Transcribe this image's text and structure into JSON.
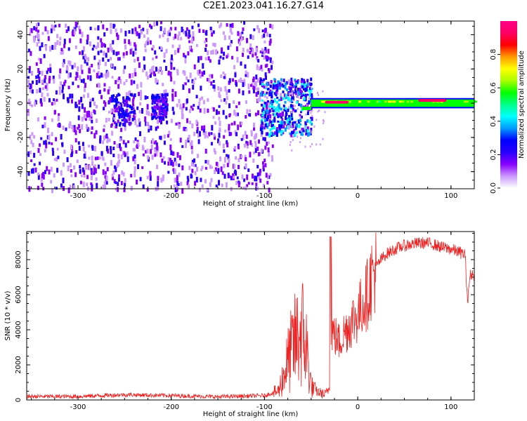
{
  "title": "C2E1.2023.041.16.27.G14",
  "chart_data": [
    {
      "type": "heatmap",
      "xlabel": "Height of straight line (km)",
      "ylabel": "Frequency (Hz)",
      "xlim": [
        -355,
        125
      ],
      "ylim": [
        -50,
        48
      ],
      "xticks": [
        -300,
        -200,
        -100,
        0,
        100
      ],
      "yticks": [
        -40,
        -20,
        0,
        20,
        40
      ],
      "grid": false,
      "colorbar": {
        "label": "Normalized spectral amplitude",
        "range": [
          0,
          1
        ],
        "ticks": [
          "0.0",
          "0.2",
          "0.4",
          "0.6",
          "0.8"
        ],
        "colors": [
          "#ffffff",
          "#cc99ff",
          "#8800ff",
          "#2a00ff",
          "#0000ff",
          "#0099ff",
          "#00ffff",
          "#00ff88",
          "#00ff00",
          "#aaff00",
          "#ffff00",
          "#ff9900",
          "#ff0000",
          "#ff0066",
          "#ff0088"
        ]
      },
      "regions": [
        {
          "name": "broadband noise",
          "x": [
            -355,
            -100
          ],
          "y": [
            -50,
            48
          ],
          "amplitude": 0.15
        },
        {
          "name": "burst",
          "x": [
            -265,
            -240
          ],
          "y": [
            -12,
            6
          ],
          "amplitude": 0.22
        },
        {
          "name": "burst",
          "x": [
            -222,
            -205
          ],
          "y": [
            -8,
            6
          ],
          "amplitude": 0.2
        },
        {
          "name": "transition",
          "x": [
            -105,
            -50
          ],
          "y": [
            -18,
            15
          ],
          "amplitude": 0.3
        },
        {
          "name": "carrier line",
          "x": [
            -50,
            125
          ],
          "y": [
            -3,
            3
          ],
          "amplitude": 0.6
        },
        {
          "name": "peak",
          "x": [
            -35,
            -10
          ],
          "y": [
            -1,
            1
          ],
          "amplitude": 0.95
        },
        {
          "name": "peak",
          "x": [
            65,
            95
          ],
          "y": [
            0,
            2
          ],
          "amplitude": 0.95
        }
      ]
    },
    {
      "type": "line",
      "xlabel": "Height of straight line (km)",
      "ylabel": "SNR (10 * v/v)",
      "xlim": [
        -355,
        125
      ],
      "ylim": [
        0,
        9600
      ],
      "xticks": [
        -300,
        -200,
        -100,
        0,
        100
      ],
      "yticks": [
        0,
        2000,
        4000,
        6000,
        8000
      ],
      "color": "#ee2222",
      "grid": false,
      "series": [
        {
          "x": [
            -355,
            -300,
            -250,
            -200,
            -150,
            -100,
            -85,
            -75,
            -70,
            -65,
            -60,
            -55,
            -50,
            -45,
            -40,
            -35,
            -30,
            -28,
            -25,
            -20,
            -15,
            -10,
            -5,
            0,
            5,
            10,
            15,
            20,
            25,
            30,
            40,
            50,
            60,
            70,
            80,
            90,
            100,
            110,
            115,
            118,
            120,
            122,
            125
          ],
          "y": [
            200,
            200,
            300,
            250,
            180,
            250,
            500,
            2200,
            3000,
            3500,
            4000,
            3000,
            800,
            500,
            400,
            300,
            700,
            4000,
            3700,
            3300,
            3800,
            4200,
            4600,
            4800,
            5500,
            6000,
            7000,
            7600,
            8000,
            8300,
            8600,
            8800,
            8900,
            8950,
            8900,
            8700,
            8600,
            8400,
            8300,
            5500,
            7000,
            7200,
            7100
          ]
        }
      ]
    }
  ]
}
